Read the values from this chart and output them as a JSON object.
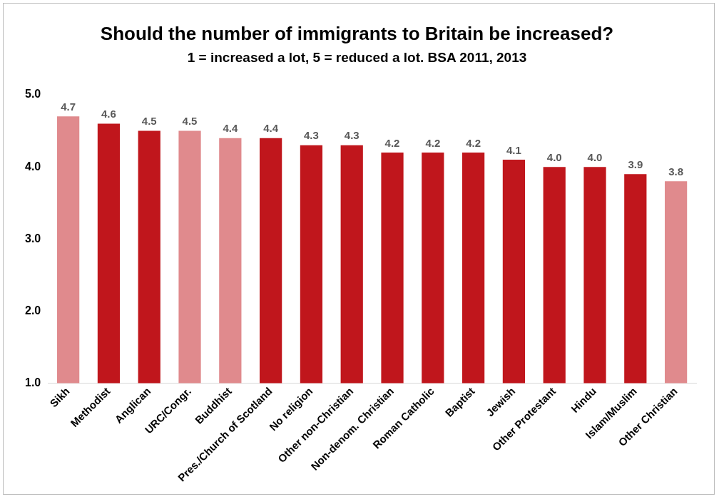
{
  "chart_data": {
    "type": "bar",
    "title": "Should the number of immigrants to Britain be increased?",
    "subtitle": "1 = increased a lot, 5 = reduced a lot. BSA 2011, 2013",
    "categories": [
      "Sikh",
      "Methodist",
      "Anglican",
      "URC/Congr.",
      "Buddhist",
      "Pres./Church of Scotland",
      "No religion",
      "Other non-Christian",
      "Non-denom. Christian",
      "Roman Catholic",
      "Baptist",
      "Jewish",
      "Other Protestant",
      "Hindu",
      "Islam/Muslim",
      "Other Christian"
    ],
    "values": [
      4.7,
      4.6,
      4.5,
      4.5,
      4.4,
      4.4,
      4.3,
      4.3,
      4.2,
      4.2,
      4.2,
      4.1,
      4.0,
      4.0,
      3.9,
      3.8
    ],
    "colors": [
      "#e08a8d",
      "#c0161c",
      "#c0161c",
      "#e08a8d",
      "#e08a8d",
      "#c0161c",
      "#c0161c",
      "#c0161c",
      "#c0161c",
      "#c0161c",
      "#c0161c",
      "#c0161c",
      "#c0161c",
      "#c0161c",
      "#c0161c",
      "#e08a8d"
    ],
    "ylim": [
      1,
      5
    ],
    "yticks": [
      {
        "value": 1,
        "label": "1.0"
      },
      {
        "value": 2,
        "label": "2.0"
      },
      {
        "value": 3,
        "label": "3.0"
      },
      {
        "value": 4,
        "label": "4.0"
      },
      {
        "value": 5,
        "label": "5.0"
      }
    ],
    "value_labels": [
      "4.7",
      "4.6",
      "4.5",
      "4.5",
      "4.4",
      "4.4",
      "4.3",
      "4.3",
      "4.2",
      "4.2",
      "4.2",
      "4.1",
      "4.0",
      "4.0",
      "3.9",
      "3.8"
    ],
    "grid": false,
    "legend": false
  }
}
